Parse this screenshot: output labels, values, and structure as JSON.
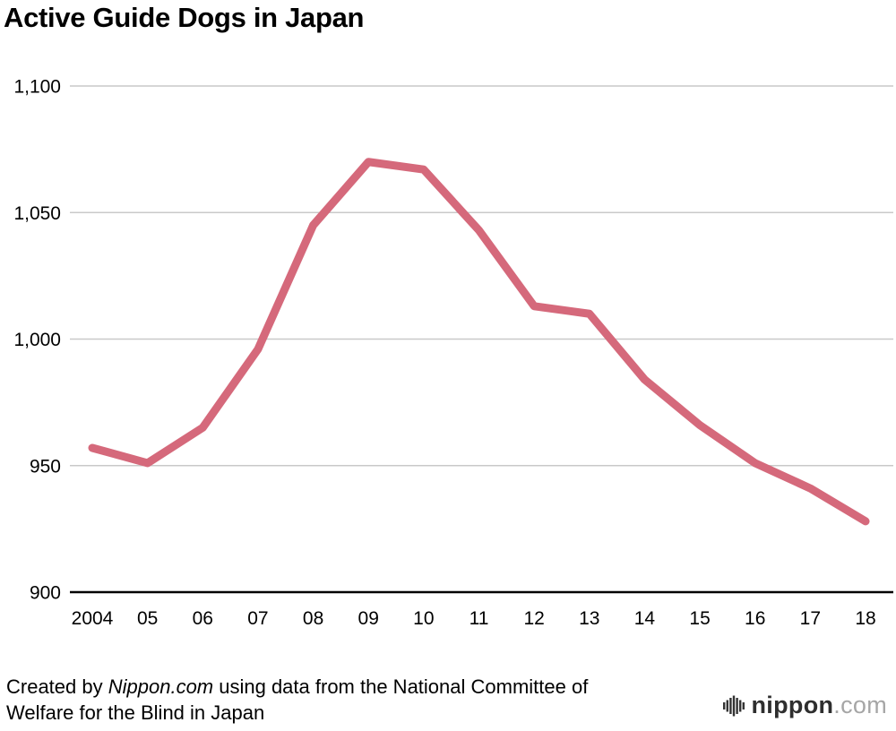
{
  "chart_data": {
    "type": "line",
    "title": "Active Guide Dogs in Japan",
    "x": [
      "2004",
      "05",
      "06",
      "07",
      "08",
      "09",
      "10",
      "11",
      "12",
      "13",
      "14",
      "15",
      "16",
      "17",
      "18"
    ],
    "values": [
      957,
      951,
      965,
      996,
      1045,
      1070,
      1067,
      1043,
      1013,
      1010,
      984,
      966,
      951,
      941,
      928
    ],
    "series_name": "Active guide dogs",
    "xlabel": "",
    "ylabel": "",
    "ylim": [
      900,
      1100
    ],
    "yticks": [
      900,
      950,
      1000,
      1050,
      1100
    ],
    "ytick_labels": [
      "900",
      "950",
      "1,000",
      "1,050",
      "1,100"
    ],
    "grid": true,
    "legend": false,
    "line_color": "#d5697b"
  },
  "footer": {
    "line1_prefix": "Created by ",
    "line1_italic": "Nippon.com",
    "line1_suffix": " using data from the National Committee of",
    "line2": "Welfare for the Blind in Japan",
    "logo_text": "nippon",
    "logo_suffix": ".com"
  }
}
